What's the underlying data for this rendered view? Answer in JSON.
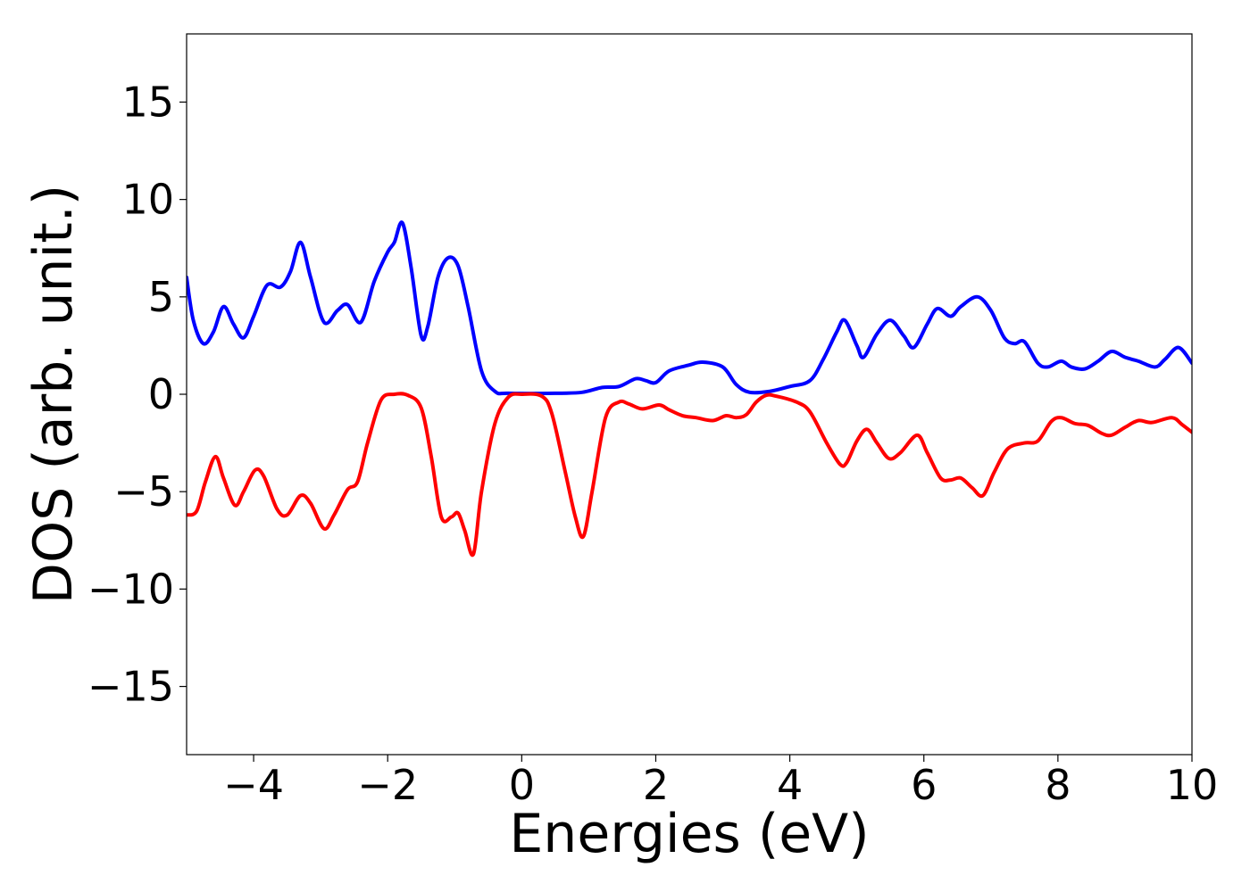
{
  "chart_data": {
    "type": "line",
    "xlabel": "Energies (eV)",
    "ylabel": "DOS (arb. unit.)",
    "xlim": [
      -5,
      10
    ],
    "ylim": [
      -18.5,
      18.5
    ],
    "xticks": [
      -4,
      -2,
      0,
      2,
      4,
      6,
      8,
      10
    ],
    "xtick_labels": [
      "−4",
      "−2",
      "0",
      "2",
      "4",
      "6",
      "8",
      "10"
    ],
    "yticks": [
      15,
      10,
      5,
      0,
      -5,
      -10,
      -15
    ],
    "ytick_labels": [
      "15",
      "10",
      "5",
      "0",
      "−5",
      "−10",
      "−15"
    ],
    "grid": false,
    "legend": "none",
    "series": [
      {
        "color": "#0000ff",
        "points": [
          [
            -5.0,
            6.0
          ],
          [
            -4.9,
            3.8
          ],
          [
            -4.75,
            2.6
          ],
          [
            -4.6,
            3.2
          ],
          [
            -4.45,
            4.5
          ],
          [
            -4.3,
            3.6
          ],
          [
            -4.15,
            2.9
          ],
          [
            -4.0,
            4.0
          ],
          [
            -3.8,
            5.6
          ],
          [
            -3.6,
            5.5
          ],
          [
            -3.45,
            6.3
          ],
          [
            -3.3,
            7.8
          ],
          [
            -3.15,
            6.0
          ],
          [
            -2.95,
            3.7
          ],
          [
            -2.75,
            4.3
          ],
          [
            -2.6,
            4.6
          ],
          [
            -2.4,
            3.7
          ],
          [
            -2.2,
            5.8
          ],
          [
            -2.0,
            7.3
          ],
          [
            -1.9,
            7.8
          ],
          [
            -1.78,
            8.8
          ],
          [
            -1.65,
            6.5
          ],
          [
            -1.5,
            3.0
          ],
          [
            -1.4,
            3.5
          ],
          [
            -1.25,
            6.0
          ],
          [
            -1.1,
            7.0
          ],
          [
            -0.95,
            6.6
          ],
          [
            -0.8,
            4.5
          ],
          [
            -0.6,
            1.2
          ],
          [
            -0.4,
            0.15
          ],
          [
            -0.2,
            0.05
          ],
          [
            0.5,
            0.05
          ],
          [
            0.9,
            0.1
          ],
          [
            1.2,
            0.35
          ],
          [
            1.45,
            0.4
          ],
          [
            1.7,
            0.8
          ],
          [
            1.85,
            0.7
          ],
          [
            2.0,
            0.6
          ],
          [
            2.2,
            1.2
          ],
          [
            2.5,
            1.5
          ],
          [
            2.7,
            1.65
          ],
          [
            3.0,
            1.4
          ],
          [
            3.2,
            0.5
          ],
          [
            3.4,
            0.1
          ],
          [
            3.7,
            0.15
          ],
          [
            4.0,
            0.4
          ],
          [
            4.3,
            0.7
          ],
          [
            4.5,
            1.8
          ],
          [
            4.7,
            3.2
          ],
          [
            4.82,
            3.8
          ],
          [
            5.0,
            2.5
          ],
          [
            5.1,
            1.9
          ],
          [
            5.3,
            3.1
          ],
          [
            5.5,
            3.8
          ],
          [
            5.7,
            3.0
          ],
          [
            5.85,
            2.4
          ],
          [
            6.05,
            3.6
          ],
          [
            6.2,
            4.4
          ],
          [
            6.4,
            4.0
          ],
          [
            6.55,
            4.5
          ],
          [
            6.8,
            5.0
          ],
          [
            7.0,
            4.3
          ],
          [
            7.2,
            2.9
          ],
          [
            7.35,
            2.6
          ],
          [
            7.5,
            2.7
          ],
          [
            7.7,
            1.6
          ],
          [
            7.85,
            1.4
          ],
          [
            8.05,
            1.7
          ],
          [
            8.2,
            1.4
          ],
          [
            8.4,
            1.3
          ],
          [
            8.6,
            1.7
          ],
          [
            8.8,
            2.2
          ],
          [
            9.0,
            1.9
          ],
          [
            9.2,
            1.7
          ],
          [
            9.45,
            1.4
          ],
          [
            9.6,
            1.8
          ],
          [
            9.8,
            2.4
          ],
          [
            10.0,
            1.6
          ]
        ]
      },
      {
        "color": "#ff0000",
        "points": [
          [
            -5.0,
            -6.2
          ],
          [
            -4.85,
            -6.0
          ],
          [
            -4.72,
            -4.5
          ],
          [
            -4.57,
            -3.2
          ],
          [
            -4.45,
            -4.3
          ],
          [
            -4.28,
            -5.7
          ],
          [
            -4.15,
            -5.0
          ],
          [
            -3.98,
            -3.9
          ],
          [
            -3.85,
            -4.2
          ],
          [
            -3.65,
            -5.9
          ],
          [
            -3.5,
            -6.2
          ],
          [
            -3.3,
            -5.2
          ],
          [
            -3.15,
            -5.6
          ],
          [
            -2.95,
            -6.9
          ],
          [
            -2.8,
            -6.2
          ],
          [
            -2.6,
            -4.9
          ],
          [
            -2.45,
            -4.5
          ],
          [
            -2.3,
            -2.5
          ],
          [
            -2.1,
            -0.3
          ],
          [
            -1.9,
            0.0
          ],
          [
            -1.7,
            -0.05
          ],
          [
            -1.5,
            -0.7
          ],
          [
            -1.35,
            -3.2
          ],
          [
            -1.2,
            -6.3
          ],
          [
            -1.05,
            -6.3
          ],
          [
            -0.95,
            -6.1
          ],
          [
            -0.85,
            -7.0
          ],
          [
            -0.72,
            -8.2
          ],
          [
            -0.6,
            -5.0
          ],
          [
            -0.4,
            -1.5
          ],
          [
            -0.2,
            -0.15
          ],
          [
            0.0,
            0.0
          ],
          [
            0.3,
            -0.1
          ],
          [
            0.45,
            -1.0
          ],
          [
            0.65,
            -4.0
          ],
          [
            0.8,
            -6.3
          ],
          [
            0.92,
            -7.3
          ],
          [
            1.05,
            -5.0
          ],
          [
            1.25,
            -1.2
          ],
          [
            1.45,
            -0.4
          ],
          [
            1.6,
            -0.5
          ],
          [
            1.8,
            -0.75
          ],
          [
            2.05,
            -0.55
          ],
          [
            2.2,
            -0.8
          ],
          [
            2.4,
            -1.1
          ],
          [
            2.6,
            -1.2
          ],
          [
            2.85,
            -1.35
          ],
          [
            3.05,
            -1.1
          ],
          [
            3.2,
            -1.2
          ],
          [
            3.35,
            -1.05
          ],
          [
            3.5,
            -0.4
          ],
          [
            3.65,
            -0.05
          ],
          [
            3.8,
            -0.1
          ],
          [
            4.1,
            -0.4
          ],
          [
            4.3,
            -0.9
          ],
          [
            4.55,
            -2.5
          ],
          [
            4.75,
            -3.6
          ],
          [
            4.85,
            -3.5
          ],
          [
            5.0,
            -2.4
          ],
          [
            5.15,
            -1.8
          ],
          [
            5.3,
            -2.5
          ],
          [
            5.48,
            -3.3
          ],
          [
            5.65,
            -3.0
          ],
          [
            5.9,
            -2.1
          ],
          [
            6.05,
            -3.0
          ],
          [
            6.25,
            -4.3
          ],
          [
            6.4,
            -4.4
          ],
          [
            6.55,
            -4.3
          ],
          [
            6.72,
            -4.8
          ],
          [
            6.88,
            -5.2
          ],
          [
            7.05,
            -4.0
          ],
          [
            7.25,
            -2.8
          ],
          [
            7.5,
            -2.5
          ],
          [
            7.7,
            -2.4
          ],
          [
            7.9,
            -1.4
          ],
          [
            8.05,
            -1.2
          ],
          [
            8.25,
            -1.5
          ],
          [
            8.45,
            -1.6
          ],
          [
            8.65,
            -2.0
          ],
          [
            8.8,
            -2.1
          ],
          [
            9.0,
            -1.7
          ],
          [
            9.2,
            -1.35
          ],
          [
            9.4,
            -1.45
          ],
          [
            9.7,
            -1.2
          ],
          [
            9.85,
            -1.55
          ],
          [
            10.0,
            -1.95
          ]
        ]
      }
    ]
  }
}
